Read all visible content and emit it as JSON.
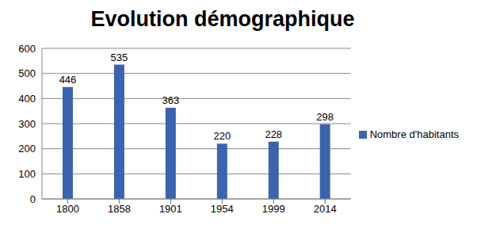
{
  "chart_data": {
    "type": "bar",
    "title": "Evolution démographique",
    "categories": [
      "1800",
      "1858",
      "1901",
      "1954",
      "1999",
      "2014"
    ],
    "series": [
      {
        "name": "Nombre d'habitants",
        "color": "#3c64ae",
        "values": [
          446,
          535,
          363,
          220,
          228,
          298
        ]
      }
    ],
    "ylim": [
      0,
      600
    ],
    "yticks": [
      0,
      100,
      200,
      300,
      400,
      500,
      600
    ],
    "grid": true,
    "legend": "right",
    "data_labels": true
  }
}
